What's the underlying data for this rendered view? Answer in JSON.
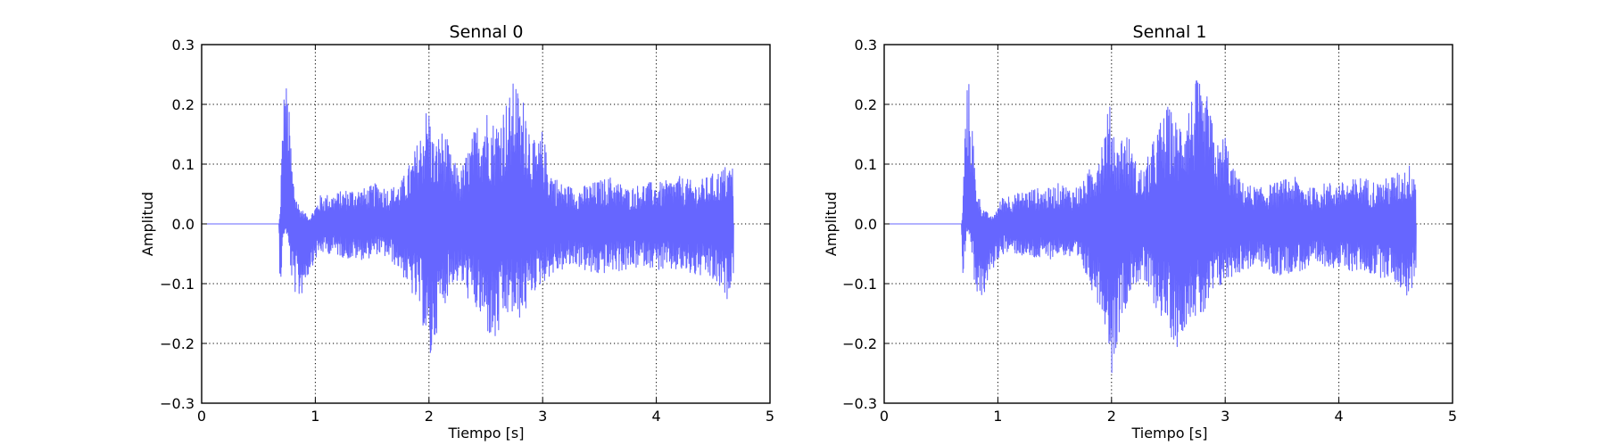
{
  "colors": {
    "series": "#6666ff",
    "background": "#ffffff",
    "axes": "#000000"
  },
  "chart_data": [
    {
      "type": "line",
      "title": "Sennal 0",
      "xlabel": "Tiempo [s]",
      "ylabel": "Amplitud",
      "xlim": [
        0,
        5
      ],
      "ylim": [
        -0.3,
        0.3
      ],
      "xticks": [
        "0",
        "1",
        "2",
        "3",
        "4",
        "5"
      ],
      "yticks": [
        "0.3",
        "0.2",
        "0.1",
        "0.0",
        "−0.1",
        "−0.2",
        "−0.3"
      ],
      "grid": true,
      "legend": "none",
      "series": [
        {
          "x": [
            0.0,
            0.68,
            0.69,
            0.7,
            0.72,
            0.74,
            0.76,
            0.78,
            0.8,
            0.83,
            0.86,
            0.9,
            0.95,
            1.0,
            1.05,
            1.15,
            1.3,
            1.45,
            1.55,
            1.65,
            1.75,
            1.85,
            1.92,
            1.97,
            2.0,
            2.05,
            2.1,
            2.15,
            2.2,
            2.28,
            2.35,
            2.42,
            2.5,
            2.58,
            2.65,
            2.72,
            2.76,
            2.8,
            2.85,
            2.9,
            2.95,
            3.0,
            3.05,
            3.15,
            3.3,
            3.45,
            3.6,
            3.75,
            3.9,
            4.05,
            4.2,
            4.35,
            4.45,
            4.55,
            4.62,
            4.68
          ],
          "upper": [
            0.0,
            0.0,
            0.02,
            0.1,
            0.22,
            0.245,
            0.22,
            0.16,
            0.09,
            0.05,
            0.03,
            0.02,
            0.01,
            0.03,
            0.05,
            0.05,
            0.06,
            0.06,
            0.07,
            0.06,
            0.07,
            0.11,
            0.15,
            0.195,
            0.2,
            0.13,
            0.16,
            0.15,
            0.11,
            0.09,
            0.13,
            0.17,
            0.2,
            0.17,
            0.2,
            0.22,
            0.255,
            0.2,
            0.22,
            0.15,
            0.13,
            0.16,
            0.1,
            0.07,
            0.06,
            0.07,
            0.08,
            0.06,
            0.07,
            0.07,
            0.08,
            0.07,
            0.08,
            0.09,
            0.1,
            0.1
          ],
          "lower": [
            0.0,
            0.0,
            -0.11,
            -0.09,
            -0.02,
            -0.01,
            -0.03,
            -0.07,
            -0.11,
            -0.12,
            -0.13,
            -0.11,
            -0.08,
            -0.06,
            -0.05,
            -0.05,
            -0.06,
            -0.06,
            -0.05,
            -0.06,
            -0.08,
            -0.12,
            -0.15,
            -0.19,
            -0.255,
            -0.2,
            -0.15,
            -0.13,
            -0.1,
            -0.1,
            -0.13,
            -0.15,
            -0.18,
            -0.21,
            -0.17,
            -0.15,
            -0.17,
            -0.16,
            -0.15,
            -0.12,
            -0.11,
            -0.1,
            -0.09,
            -0.08,
            -0.07,
            -0.09,
            -0.08,
            -0.08,
            -0.07,
            -0.08,
            -0.08,
            -0.09,
            -0.09,
            -0.11,
            -0.13,
            -0.08
          ]
        }
      ]
    },
    {
      "type": "line",
      "title": "Sennal 1",
      "xlabel": "Tiempo [s]",
      "ylabel": "Amplitud",
      "xlim": [
        0,
        5
      ],
      "ylim": [
        -0.3,
        0.3
      ],
      "xticks": [
        "0",
        "1",
        "2",
        "3",
        "4",
        "5"
      ],
      "yticks": [
        "0.3",
        "0.2",
        "0.1",
        "0.0",
        "−0.1",
        "−0.2",
        "−0.3"
      ],
      "grid": true,
      "legend": "none",
      "series": [
        {
          "x": [
            0.0,
            0.68,
            0.69,
            0.7,
            0.72,
            0.74,
            0.76,
            0.78,
            0.8,
            0.83,
            0.86,
            0.9,
            0.95,
            1.0,
            1.05,
            1.15,
            1.3,
            1.45,
            1.55,
            1.65,
            1.75,
            1.85,
            1.92,
            1.97,
            2.0,
            2.05,
            2.1,
            2.15,
            2.2,
            2.28,
            2.35,
            2.42,
            2.5,
            2.58,
            2.65,
            2.72,
            2.76,
            2.8,
            2.85,
            2.9,
            2.95,
            3.0,
            3.05,
            3.15,
            3.3,
            3.45,
            3.6,
            3.75,
            3.9,
            4.05,
            4.2,
            4.35,
            4.45,
            4.55,
            4.62,
            4.68
          ],
          "upper": [
            0.0,
            0.0,
            0.02,
            0.1,
            0.22,
            0.245,
            0.22,
            0.16,
            0.09,
            0.05,
            0.03,
            0.02,
            0.01,
            0.03,
            0.05,
            0.05,
            0.06,
            0.06,
            0.07,
            0.06,
            0.07,
            0.11,
            0.15,
            0.195,
            0.2,
            0.13,
            0.16,
            0.15,
            0.11,
            0.09,
            0.13,
            0.17,
            0.2,
            0.17,
            0.2,
            0.22,
            0.255,
            0.2,
            0.22,
            0.15,
            0.13,
            0.16,
            0.1,
            0.07,
            0.06,
            0.07,
            0.08,
            0.06,
            0.07,
            0.07,
            0.08,
            0.07,
            0.08,
            0.09,
            0.1,
            0.1
          ],
          "lower": [
            0.0,
            0.0,
            -0.11,
            -0.09,
            -0.02,
            -0.01,
            -0.03,
            -0.07,
            -0.11,
            -0.12,
            -0.13,
            -0.11,
            -0.08,
            -0.06,
            -0.05,
            -0.05,
            -0.06,
            -0.06,
            -0.05,
            -0.06,
            -0.08,
            -0.12,
            -0.15,
            -0.19,
            -0.255,
            -0.2,
            -0.15,
            -0.13,
            -0.1,
            -0.1,
            -0.13,
            -0.15,
            -0.18,
            -0.21,
            -0.17,
            -0.15,
            -0.17,
            -0.16,
            -0.15,
            -0.12,
            -0.11,
            -0.1,
            -0.09,
            -0.08,
            -0.07,
            -0.09,
            -0.08,
            -0.08,
            -0.07,
            -0.08,
            -0.08,
            -0.09,
            -0.09,
            -0.11,
            -0.13,
            -0.08
          ]
        }
      ]
    }
  ]
}
